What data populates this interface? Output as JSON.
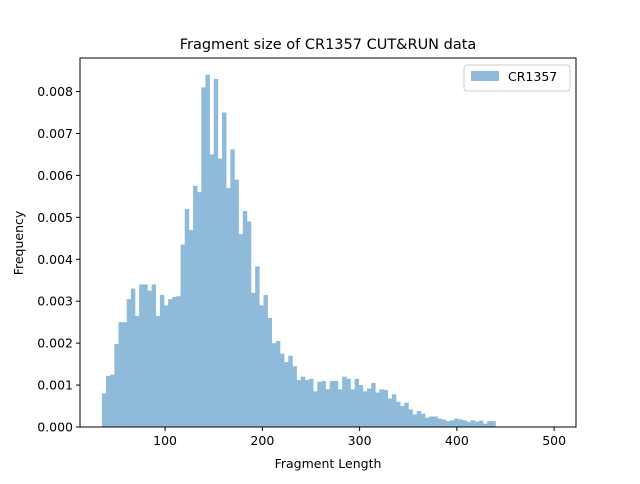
{
  "chart_data": {
    "type": "bar",
    "title": "Fragment size of CR1357 CUT&RUN data",
    "xlabel": "Fragment Length",
    "ylabel": "Frequency",
    "xlim": [
      12.5,
      522.5
    ],
    "ylim": [
      0,
      0.0088
    ],
    "xticks": [
      100,
      200,
      300,
      400,
      500
    ],
    "xtick_labels": [
      "100",
      "200",
      "300",
      "400",
      "500"
    ],
    "yticks": [
      0,
      0.001,
      0.002,
      0.003,
      0.004,
      0.005,
      0.006,
      0.007,
      0.008
    ],
    "ytick_labels": [
      "0.000",
      "0.001",
      "0.002",
      "0.003",
      "0.004",
      "0.005",
      "0.006",
      "0.007",
      "0.008"
    ],
    "grid": false,
    "legend_position": "top-right",
    "bin_start": 35,
    "bin_width": 4.26,
    "series": [
      {
        "name": "CR1357",
        "color": "#8fbad9",
        "values": [
          0.0008,
          0.00122,
          0.00125,
          0.00198,
          0.0025,
          0.0025,
          0.00305,
          0.0033,
          0.00265,
          0.0034,
          0.0034,
          0.00325,
          0.0034,
          0.00265,
          0.00315,
          0.0029,
          0.00305,
          0.0031,
          0.00312,
          0.00435,
          0.0052,
          0.0047,
          0.00575,
          0.0056,
          0.0081,
          0.0084,
          0.0065,
          0.0083,
          0.0064,
          0.0075,
          0.0057,
          0.00662,
          0.0059,
          0.0046,
          0.00515,
          0.0049,
          0.0032,
          0.00383,
          0.0029,
          0.00315,
          0.0026,
          0.002,
          0.00205,
          0.00175,
          0.00155,
          0.0017,
          0.00145,
          0.00112,
          0.0012,
          0.00112,
          0.00115,
          0.00085,
          0.00108,
          0.0011,
          0.0009,
          0.0011,
          0.0011,
          0.0009,
          0.0012,
          0.00115,
          0.0009,
          0.00115,
          0.001,
          0.00085,
          0.00092,
          0.00105,
          0.00082,
          0.0009,
          0.00088,
          0.00068,
          0.00078,
          0.0006,
          0.0005,
          0.00058,
          0.00042,
          0.0003,
          0.00038,
          0.00032,
          0.00022,
          0.00025,
          0.00025,
          0.0002,
          0.00018,
          0.00014,
          0.00016,
          0.0002,
          0.00018,
          0.00016,
          0.00012,
          0.00016,
          0.00013,
          0.00015,
          8e-05,
          0.00014,
          0.00014
        ]
      }
    ]
  }
}
